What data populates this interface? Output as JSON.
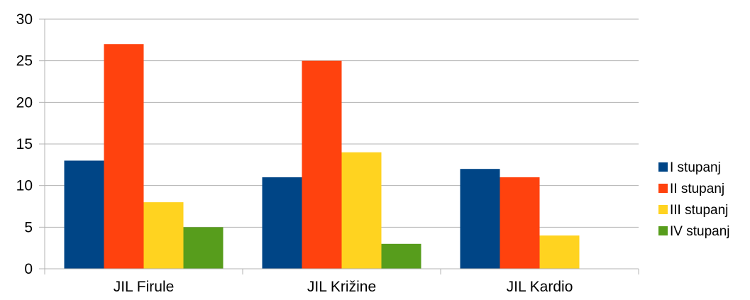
{
  "chart_data": {
    "type": "bar",
    "title": "",
    "xlabel": "",
    "ylabel": "",
    "categories": [
      "JIL Firule",
      "JIL Križine",
      "JIL Kardio"
    ],
    "series": [
      {
        "name": "I stupanj",
        "values": [
          13,
          11,
          12
        ],
        "color": "#004586"
      },
      {
        "name": "II stupanj",
        "values": [
          27,
          25,
          11
        ],
        "color": "#ff420e"
      },
      {
        "name": "III stupanj",
        "values": [
          8,
          14,
          4
        ],
        "color": "#ffd320"
      },
      {
        "name": "IV stupanj",
        "values": [
          5,
          3,
          0
        ],
        "color": "#579d1c"
      }
    ],
    "ylim": [
      0,
      30
    ],
    "yticks": [
      0,
      5,
      10,
      15,
      20,
      25,
      30
    ],
    "grid": true,
    "legend": "right"
  }
}
